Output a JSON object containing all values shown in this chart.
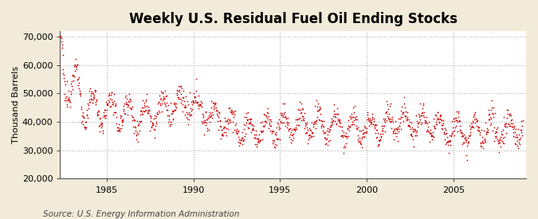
{
  "title": "Weekly U.S. Residual Fuel Oil Ending Stocks",
  "ylabel": "Thousand Barrels",
  "source": "Source: U.S. Energy Information Administration",
  "background_color": "#F2EBD9",
  "plot_bg_color": "#FFFFFF",
  "dot_color": "#CC0000",
  "ylim": [
    20000,
    72000
  ],
  "yticks": [
    20000,
    30000,
    40000,
    50000,
    60000,
    70000
  ],
  "ytick_labels": [
    "20,000",
    "30,000",
    "40,000",
    "50,000",
    "60,000",
    "70,000"
  ],
  "xlim_start": 1982.3,
  "xlim_end": 2009.2,
  "xticks": [
    1985,
    1990,
    1995,
    2000,
    2005
  ],
  "grid_color": "#AAAAAA",
  "title_fontsize": 12,
  "label_fontsize": 8,
  "tick_fontsize": 8,
  "source_fontsize": 7.5
}
